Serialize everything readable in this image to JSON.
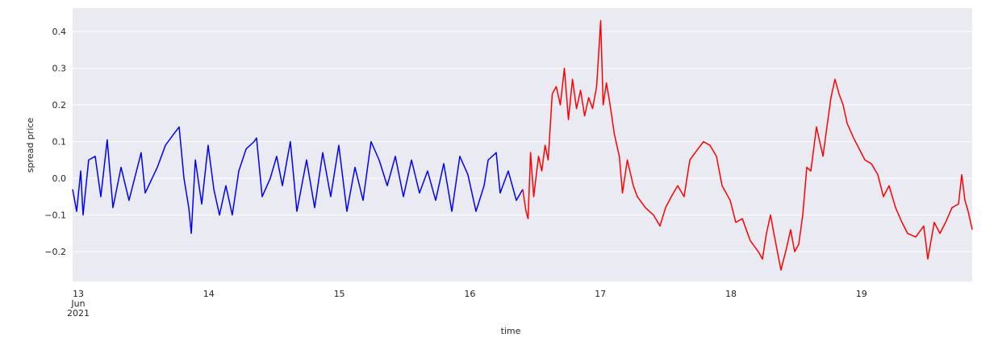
{
  "chart_data": {
    "type": "line",
    "xlabel": "time",
    "ylabel": "spread price",
    "xlim": [
      12.957,
      19.848
    ],
    "ylim": [
      -0.281,
      0.464
    ],
    "xticks": [
      {
        "value": 13,
        "label": "13\nJun\n2021"
      },
      14,
      15,
      16,
      17,
      18,
      19
    ],
    "yticks": [
      {
        "value": -0.2,
        "label": "−0.2"
      },
      {
        "value": -0.1,
        "label": "−0.1"
      },
      {
        "value": 0,
        "label": "0.0"
      },
      0.1,
      0.2,
      0.3,
      0.4
    ],
    "grid": true,
    "series": [
      {
        "color": "#0000ff",
        "x": [
          12.957,
          12.988,
          13.019,
          13.037,
          13.08,
          13.13,
          13.173,
          13.222,
          13.266,
          13.328,
          13.389,
          13.482,
          13.513,
          13.606,
          13.668,
          13.73,
          13.773,
          13.81,
          13.847,
          13.866,
          13.897,
          13.946,
          13.995,
          14.039,
          14.082,
          14.131,
          14.18,
          14.23,
          14.286,
          14.347,
          14.366,
          14.409,
          14.471,
          14.52,
          14.564,
          14.625,
          14.675,
          14.749,
          14.811,
          14.873,
          14.934,
          14.996,
          15.058,
          15.12,
          15.182,
          15.243,
          15.305,
          15.367,
          15.429,
          15.491,
          15.553,
          15.614,
          15.676,
          15.738,
          15.8,
          15.862,
          15.923,
          15.985,
          16.047,
          16.109,
          16.14,
          16.202,
          16.232,
          16.294,
          16.356,
          16.405
        ],
        "values": [
          -0.03,
          -0.09,
          0.02,
          -0.1,
          0.05,
          0.06,
          -0.05,
          0.105,
          -0.08,
          0.03,
          -0.06,
          0.07,
          -0.04,
          0.03,
          0.09,
          0.12,
          0.14,
          0.0,
          -0.08,
          -0.15,
          0.05,
          -0.07,
          0.09,
          -0.03,
          -0.1,
          -0.02,
          -0.1,
          0.02,
          0.08,
          0.1,
          0.11,
          -0.05,
          0.0,
          0.06,
          -0.02,
          0.1,
          -0.09,
          0.05,
          -0.08,
          0.07,
          -0.05,
          0.09,
          -0.09,
          0.03,
          -0.06,
          0.1,
          0.05,
          -0.02,
          0.06,
          -0.05,
          0.05,
          -0.04,
          0.02,
          -0.06,
          0.04,
          -0.09,
          0.06,
          0.01,
          -0.09,
          -0.02,
          0.05,
          0.07,
          -0.04,
          0.02,
          -0.06,
          -0.03
        ]
      },
      {
        "color": "#ff0000",
        "x": [
          16.405,
          16.43,
          16.446,
          16.465,
          16.489,
          16.526,
          16.551,
          16.576,
          16.6,
          16.631,
          16.662,
          16.693,
          16.724,
          16.755,
          16.786,
          16.817,
          16.848,
          16.879,
          16.91,
          16.94,
          16.971,
          17.002,
          17.021,
          17.046,
          17.07,
          17.107,
          17.145,
          17.169,
          17.206,
          17.252,
          17.283,
          17.345,
          17.407,
          17.456,
          17.499,
          17.543,
          17.592,
          17.641,
          17.685,
          17.747,
          17.79,
          17.839,
          17.889,
          17.932,
          17.994,
          18.037,
          18.087,
          18.148,
          18.21,
          18.241,
          18.272,
          18.303,
          18.334,
          18.383,
          18.426,
          18.457,
          18.488,
          18.519,
          18.55,
          18.581,
          18.612,
          18.655,
          18.705,
          18.735,
          18.766,
          18.797,
          18.828,
          18.859,
          18.89,
          18.939,
          18.983,
          19.026,
          19.075,
          19.125,
          19.168,
          19.211,
          19.261,
          19.31,
          19.353,
          19.415,
          19.477,
          19.508,
          19.557,
          19.601,
          19.644,
          19.693,
          19.743,
          19.768,
          19.792,
          19.817,
          19.848
        ],
        "values": [
          -0.03,
          -0.09,
          -0.11,
          0.07,
          -0.05,
          0.06,
          0.02,
          0.09,
          0.05,
          0.23,
          0.25,
          0.2,
          0.3,
          0.16,
          0.27,
          0.19,
          0.24,
          0.17,
          0.22,
          0.19,
          0.25,
          0.43,
          0.2,
          0.26,
          0.21,
          0.12,
          0.06,
          -0.04,
          0.05,
          -0.02,
          -0.05,
          -0.08,
          -0.1,
          -0.13,
          -0.08,
          -0.05,
          -0.02,
          -0.05,
          0.05,
          0.08,
          0.1,
          0.09,
          0.06,
          -0.02,
          -0.06,
          -0.12,
          -0.11,
          -0.17,
          -0.2,
          -0.22,
          -0.15,
          -0.1,
          -0.16,
          -0.25,
          -0.19,
          -0.14,
          -0.2,
          -0.18,
          -0.1,
          0.03,
          0.02,
          0.14,
          0.06,
          0.14,
          0.22,
          0.27,
          0.23,
          0.2,
          0.15,
          0.11,
          0.08,
          0.05,
          0.04,
          0.01,
          -0.05,
          -0.02,
          -0.08,
          -0.12,
          -0.15,
          -0.16,
          -0.13,
          -0.22,
          -0.12,
          -0.15,
          -0.12,
          -0.08,
          -0.07,
          0.01,
          -0.06,
          -0.09,
          -0.14
        ]
      }
    ]
  }
}
